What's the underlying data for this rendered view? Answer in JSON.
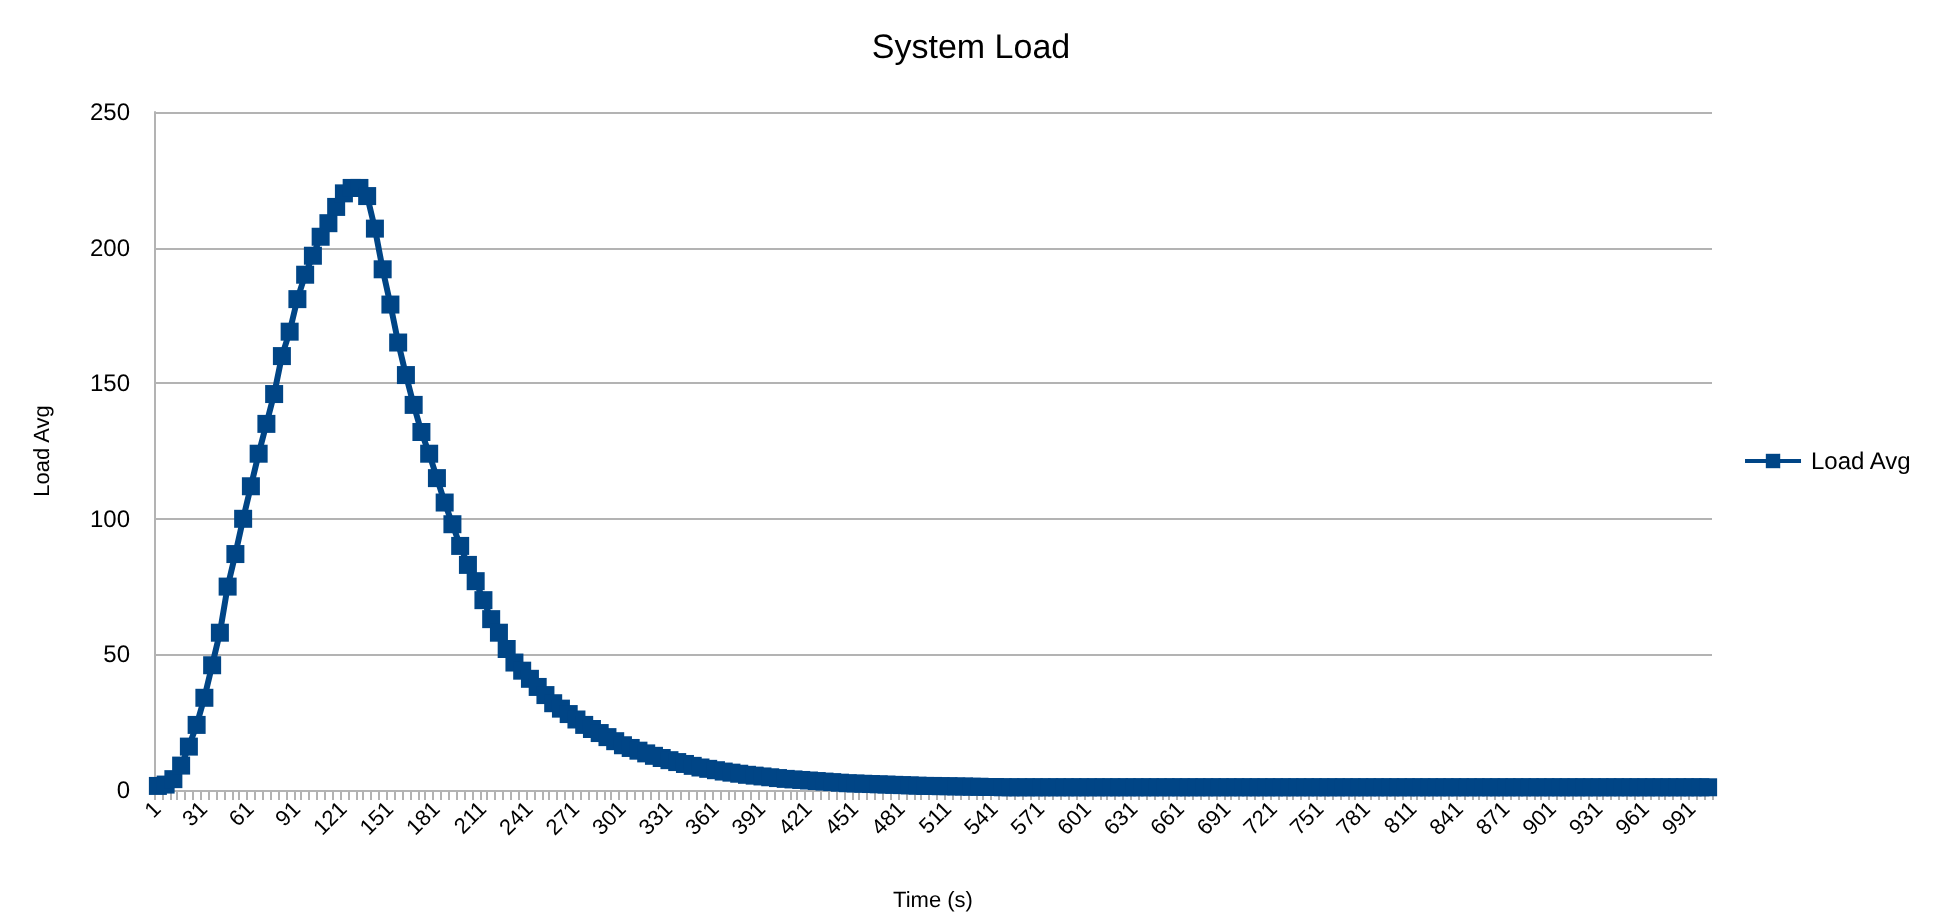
{
  "chart_data": {
    "type": "line",
    "title": "System Load",
    "xlabel": "Time (s)",
    "ylabel": "Load Avg",
    "categories": [
      "1",
      null,
      null,
      null,
      null,
      null,
      "31",
      null,
      null,
      null,
      null,
      null,
      "61",
      null,
      null,
      null,
      null,
      null,
      "91",
      null,
      null,
      null,
      null,
      null,
      "121",
      null,
      null,
      null,
      null,
      null,
      "151",
      null,
      null,
      null,
      null,
      null,
      "181",
      null,
      null,
      null,
      null,
      null,
      "211",
      null,
      null,
      null,
      null,
      null,
      "241",
      null,
      null,
      null,
      null,
      null,
      "271",
      null,
      null,
      null,
      null,
      null,
      "301",
      null,
      null,
      null,
      null,
      null,
      "331",
      null,
      null,
      null,
      null,
      null,
      "361",
      null,
      null,
      null,
      null,
      null,
      "391",
      null,
      null,
      null,
      null,
      null,
      "421",
      null,
      null,
      null,
      null,
      null,
      "451",
      null,
      null,
      null,
      null,
      null,
      "481",
      null,
      null,
      null,
      null,
      null,
      "511",
      null,
      null,
      null,
      null,
      null,
      "541",
      null,
      null,
      null,
      null,
      null,
      "571",
      null,
      null,
      null,
      null,
      null,
      "601",
      null,
      null,
      null,
      null,
      null,
      "631",
      null,
      null,
      null,
      null,
      null,
      "661",
      null,
      null,
      null,
      null,
      null,
      "691",
      null,
      null,
      null,
      null,
      null,
      "721",
      null,
      null,
      null,
      null,
      null,
      "751",
      null,
      null,
      null,
      null,
      null,
      "781",
      null,
      null,
      null,
      null,
      null,
      "811",
      null,
      null,
      null,
      null,
      null,
      "841",
      null,
      null,
      null,
      null,
      null,
      "871",
      null,
      null,
      null,
      null,
      null,
      "901",
      null,
      null,
      null,
      null,
      null,
      "931",
      null,
      null,
      null,
      null,
      null,
      "961",
      null,
      null,
      null,
      null,
      null,
      "991",
      null,
      null
    ],
    "series": [
      {
        "name": "Load Avg",
        "color": "#004586",
        "values": [
          1.5,
          2,
          4,
          9,
          16,
          24,
          34,
          46,
          58,
          75,
          87,
          100,
          112,
          124,
          135,
          146,
          160,
          169,
          181,
          190,
          197,
          204,
          209,
          215,
          220,
          222,
          222,
          219,
          207,
          192,
          179,
          165,
          153,
          142,
          132,
          124,
          115,
          106,
          98,
          90,
          83,
          77,
          70,
          63,
          58,
          52,
          47,
          44,
          41,
          38,
          35,
          32,
          30,
          28,
          26,
          24,
          22.5,
          21,
          19.5,
          18,
          16.5,
          15.5,
          14.5,
          13.5,
          12.6,
          11.8,
          11,
          10.3,
          9.6,
          8.9,
          8.3,
          7.8,
          7.3,
          6.8,
          6.4,
          6,
          5.6,
          5.3,
          5,
          4.7,
          4.4,
          4.1,
          3.9,
          3.7,
          3.5,
          3.3,
          3.1,
          2.9,
          2.7,
          2.5,
          2.4,
          2.3,
          2.2,
          2.1,
          2,
          1.9,
          1.8,
          1.7,
          1.6,
          1.5,
          1.5,
          1.4,
          1.4,
          1.3,
          1.3,
          1.2,
          1.2,
          1.1,
          1.1,
          1,
          1,
          1,
          1,
          1,
          1,
          1,
          1,
          1,
          1,
          1,
          1,
          1,
          1,
          1,
          1,
          1,
          1,
          1,
          1,
          1,
          1,
          1,
          1,
          1,
          1,
          1,
          1,
          1,
          1,
          1,
          1,
          1,
          1,
          1,
          1,
          1,
          1,
          1,
          1,
          1,
          1,
          1,
          1,
          1,
          1,
          1,
          1,
          1,
          1,
          1,
          1,
          1,
          1,
          1,
          1,
          1,
          1,
          1,
          1,
          1,
          1,
          1,
          1,
          1,
          1,
          1,
          1,
          1,
          1,
          1,
          1,
          1,
          1,
          1,
          1,
          1,
          1,
          1,
          1,
          1,
          1,
          1,
          1,
          1,
          1,
          1,
          1,
          1,
          1,
          1,
          1
        ]
      }
    ],
    "ylim": [
      0,
      250
    ],
    "yticks": [
      0,
      50,
      100,
      150,
      200,
      250
    ],
    "grid": "y",
    "legend": "right",
    "marker": "square",
    "line_style": "solid"
  }
}
